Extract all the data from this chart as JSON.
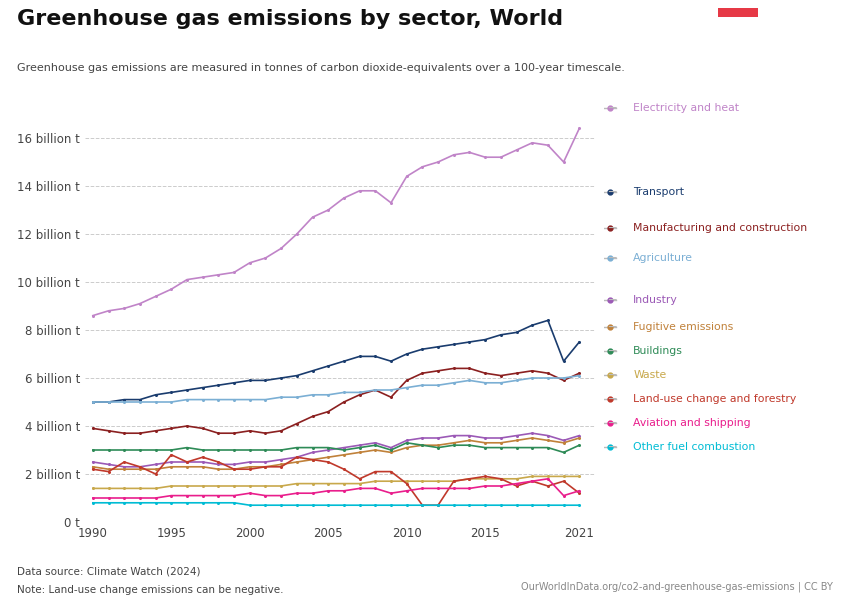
{
  "title": "Greenhouse gas emissions by sector, World",
  "subtitle": "Greenhouse gas emissions are measured in tonnes of carbon dioxide-equivalents over a 100-year timescale.",
  "datasource": "Data source: Climate Watch (2024)",
  "note": "Note: Land-use change emissions can be negative.",
  "url": "OurWorldInData.org/co2-and-greenhouse-gas-emissions | CC BY",
  "years": [
    1990,
    1991,
    1992,
    1993,
    1994,
    1995,
    1996,
    1997,
    1998,
    1999,
    2000,
    2001,
    2002,
    2003,
    2004,
    2005,
    2006,
    2007,
    2008,
    2009,
    2010,
    2011,
    2012,
    2013,
    2014,
    2015,
    2016,
    2017,
    2018,
    2019,
    2020,
    2021
  ],
  "series": {
    "Electricity and heat": {
      "color": "#c084c8",
      "values": [
        8.6,
        8.8,
        8.9,
        9.1,
        9.4,
        9.7,
        10.1,
        10.2,
        10.3,
        10.4,
        10.8,
        11.0,
        11.4,
        12.0,
        12.7,
        13.0,
        13.5,
        13.8,
        13.8,
        13.3,
        14.4,
        14.8,
        15.0,
        15.3,
        15.4,
        15.2,
        15.2,
        15.5,
        15.8,
        15.7,
        15.0,
        16.4
      ]
    },
    "Transport": {
      "color": "#1a3c6e",
      "values": [
        5.0,
        5.0,
        5.1,
        5.1,
        5.3,
        5.4,
        5.5,
        5.6,
        5.7,
        5.8,
        5.9,
        5.9,
        6.0,
        6.1,
        6.3,
        6.5,
        6.7,
        6.9,
        6.9,
        6.7,
        7.0,
        7.2,
        7.3,
        7.4,
        7.5,
        7.6,
        7.8,
        7.9,
        8.2,
        8.4,
        6.7,
        7.5
      ]
    },
    "Manufacturing and construction": {
      "color": "#8b2020",
      "values": [
        3.9,
        3.8,
        3.7,
        3.7,
        3.8,
        3.9,
        4.0,
        3.9,
        3.7,
        3.7,
        3.8,
        3.7,
        3.8,
        4.1,
        4.4,
        4.6,
        5.0,
        5.3,
        5.5,
        5.2,
        5.9,
        6.2,
        6.3,
        6.4,
        6.4,
        6.2,
        6.1,
        6.2,
        6.3,
        6.2,
        5.9,
        6.2
      ]
    },
    "Agriculture": {
      "color": "#7bafd4",
      "values": [
        5.0,
        5.0,
        5.0,
        5.0,
        5.0,
        5.0,
        5.1,
        5.1,
        5.1,
        5.1,
        5.1,
        5.1,
        5.2,
        5.2,
        5.3,
        5.3,
        5.4,
        5.4,
        5.5,
        5.5,
        5.6,
        5.7,
        5.7,
        5.8,
        5.9,
        5.8,
        5.8,
        5.9,
        6.0,
        6.0,
        6.0,
        6.1
      ]
    },
    "Industry": {
      "color": "#9b59b6",
      "values": [
        2.5,
        2.4,
        2.3,
        2.3,
        2.4,
        2.5,
        2.5,
        2.5,
        2.4,
        2.4,
        2.5,
        2.5,
        2.6,
        2.7,
        2.9,
        3.0,
        3.1,
        3.2,
        3.3,
        3.1,
        3.4,
        3.5,
        3.5,
        3.6,
        3.6,
        3.5,
        3.5,
        3.6,
        3.7,
        3.6,
        3.4,
        3.6
      ]
    },
    "Fugitive emissions": {
      "color": "#c0813a",
      "values": [
        2.3,
        2.2,
        2.2,
        2.2,
        2.2,
        2.3,
        2.3,
        2.3,
        2.2,
        2.2,
        2.3,
        2.3,
        2.4,
        2.5,
        2.6,
        2.7,
        2.8,
        2.9,
        3.0,
        2.9,
        3.1,
        3.2,
        3.2,
        3.3,
        3.4,
        3.3,
        3.3,
        3.4,
        3.5,
        3.4,
        3.3,
        3.5
      ]
    },
    "Buildings": {
      "color": "#2e8b57",
      "values": [
        3.0,
        3.0,
        3.0,
        3.0,
        3.0,
        3.0,
        3.1,
        3.0,
        3.0,
        3.0,
        3.0,
        3.0,
        3.0,
        3.1,
        3.1,
        3.1,
        3.0,
        3.1,
        3.2,
        3.0,
        3.3,
        3.2,
        3.1,
        3.2,
        3.2,
        3.1,
        3.1,
        3.1,
        3.1,
        3.1,
        2.9,
        3.2
      ]
    },
    "Waste": {
      "color": "#c8a84b",
      "values": [
        1.4,
        1.4,
        1.4,
        1.4,
        1.4,
        1.5,
        1.5,
        1.5,
        1.5,
        1.5,
        1.5,
        1.5,
        1.5,
        1.6,
        1.6,
        1.6,
        1.6,
        1.6,
        1.7,
        1.7,
        1.7,
        1.7,
        1.7,
        1.7,
        1.8,
        1.8,
        1.8,
        1.8,
        1.9,
        1.9,
        1.9,
        1.9
      ]
    },
    "Land-use change and forestry": {
      "color": "#c0392b",
      "values": [
        2.2,
        2.1,
        2.5,
        2.3,
        2.0,
        2.8,
        2.5,
        2.7,
        2.5,
        2.2,
        2.2,
        2.3,
        2.3,
        2.7,
        2.6,
        2.5,
        2.2,
        1.8,
        2.1,
        2.1,
        1.6,
        0.7,
        0.7,
        1.7,
        1.8,
        1.9,
        1.8,
        1.5,
        1.7,
        1.5,
        1.7,
        1.2
      ]
    },
    "Aviation and shipping": {
      "color": "#e91e8c",
      "values": [
        1.0,
        1.0,
        1.0,
        1.0,
        1.0,
        1.1,
        1.1,
        1.1,
        1.1,
        1.1,
        1.2,
        1.1,
        1.1,
        1.2,
        1.2,
        1.3,
        1.3,
        1.4,
        1.4,
        1.2,
        1.3,
        1.4,
        1.4,
        1.4,
        1.4,
        1.5,
        1.5,
        1.6,
        1.7,
        1.8,
        1.1,
        1.3
      ]
    },
    "Other fuel combustion": {
      "color": "#00bcd4",
      "values": [
        0.8,
        0.8,
        0.8,
        0.8,
        0.8,
        0.8,
        0.8,
        0.8,
        0.8,
        0.8,
        0.7,
        0.7,
        0.7,
        0.7,
        0.7,
        0.7,
        0.7,
        0.7,
        0.7,
        0.7,
        0.7,
        0.7,
        0.7,
        0.7,
        0.7,
        0.7,
        0.7,
        0.7,
        0.7,
        0.7,
        0.7,
        0.7
      ]
    }
  },
  "ylim": [
    0,
    17
  ],
  "yticks": [
    0,
    2,
    4,
    6,
    8,
    10,
    12,
    14,
    16
  ],
  "ytick_labels": [
    "0 t",
    "2 billion t",
    "4 billion t",
    "6 billion t",
    "8 billion t",
    "10 billion t",
    "12 billion t",
    "14 billion t",
    "16 billion t"
  ],
  "xlim": [
    1989.5,
    2022
  ],
  "xticks": [
    1990,
    1995,
    2000,
    2005,
    2010,
    2015,
    2021
  ],
  "logo_bg": "#1a3a5c",
  "logo_accent": "#e63946",
  "legend_order": [
    "Electricity and heat",
    "Transport",
    "Manufacturing and construction",
    "Agriculture",
    "Industry",
    "Fugitive emissions",
    "Buildings",
    "Waste",
    "Land-use change and forestry",
    "Aviation and shipping",
    "Other fuel combustion"
  ]
}
